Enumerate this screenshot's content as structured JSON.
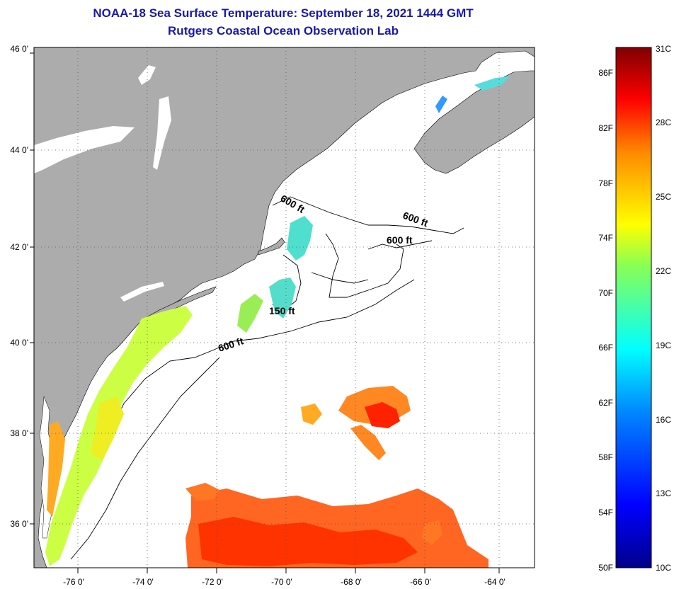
{
  "header": {
    "title": "NOAA-18 Sea Surface Temperature:  September 18, 2021 1444 GMT",
    "subtitle": "Rutgers Coastal Ocean Observation Lab"
  },
  "map": {
    "lat_labels": [
      "46 0'",
      "44 0'",
      "42 0'",
      "40 0'",
      "38 0'",
      "36 0'"
    ],
    "lon_labels": [
      "-76 0'",
      "-74 0'",
      "-72 0'",
      "-70 0'",
      "-68 0'",
      "-66 0'",
      "-64 0'"
    ],
    "contour_labels": [
      "600 ft",
      "600 ft",
      "600 ft",
      "150 ft",
      "600 ft"
    ],
    "colors": {
      "land": "#acacac",
      "ocean": "#ffffff",
      "grid": "#555555"
    }
  },
  "colorbar": {
    "fahrenheit_labels": [
      "86F",
      "82F",
      "78F",
      "74F",
      "70F",
      "66F",
      "62F",
      "58F",
      "54F",
      "50F"
    ],
    "celsius_labels": [
      "31C",
      "28C",
      "25C",
      "22C",
      "19C",
      "16C",
      "13C",
      "10C"
    ],
    "min_celsius": 10,
    "max_celsius": 31
  }
}
